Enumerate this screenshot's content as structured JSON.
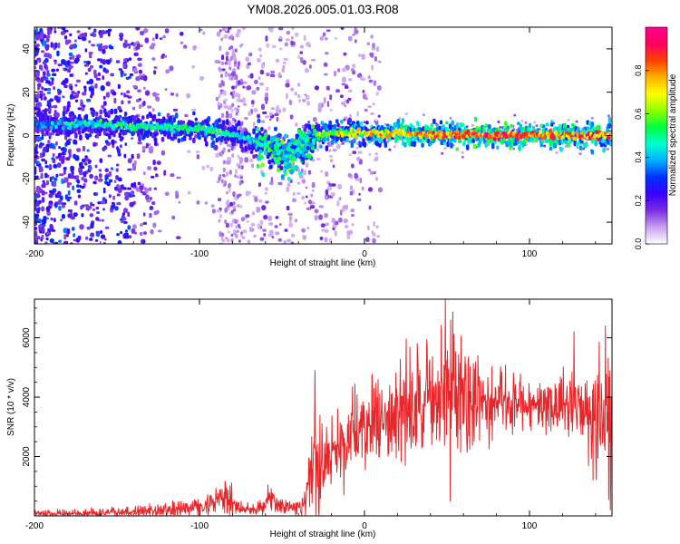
{
  "title": "YM08.2026.005.01.03.R08",
  "chart_data": [
    {
      "type": "heatmap",
      "name": "spectrogram",
      "xlabel": "Height of straight line (km)",
      "ylabel": "Frequency (Hz)",
      "xlim": [
        -200,
        150
      ],
      "ylim": [
        -50,
        50
      ],
      "xticks": [
        "-200",
        "-100",
        "0",
        "100"
      ],
      "yticks": [
        "-40",
        "-20",
        "0",
        "20",
        "40"
      ],
      "xtick_values": [
        -200,
        -100,
        0,
        100
      ],
      "ytick_values": [
        -40,
        -20,
        0,
        20,
        40
      ],
      "ridge": {
        "x": [
          -200,
          -180,
          -160,
          -140,
          -120,
          -100,
          -90,
          -80,
          -70,
          -60,
          -50,
          -45,
          -40,
          -35,
          -30,
          -20,
          0,
          20,
          50,
          80,
          100,
          120,
          150
        ],
        "amp": [
          0.35,
          0.42,
          0.45,
          0.5,
          0.5,
          0.5,
          0.5,
          0.45,
          0.45,
          0.35,
          0.3,
          0.25,
          0.35,
          0.45,
          0.6,
          0.6,
          0.7,
          0.75,
          0.8,
          0.88,
          0.85,
          0.8,
          0.8
        ],
        "freq": [
          5,
          5,
          5,
          4,
          4,
          3,
          2,
          1,
          -2,
          -4,
          -6,
          -8,
          -5,
          -2,
          0,
          1,
          1,
          1,
          0.5,
          0,
          0,
          0,
          0
        ]
      }
    },
    {
      "type": "colorbar",
      "name": "colorbar",
      "label": "Normalized spectral amplitude",
      "range": [
        0,
        1
      ],
      "ticks": [
        "0.0",
        "0.2",
        "0.4",
        "0.6",
        "0.8"
      ],
      "tick_values": [
        0.0,
        0.2,
        0.4,
        0.6,
        0.8
      ],
      "colormap": [
        "#ffffff",
        "#c8a0f0",
        "#7a2ee0",
        "#3a00ff",
        "#0030ff",
        "#00b0ff",
        "#00ffd0",
        "#00ff40",
        "#90ff00",
        "#ffff00",
        "#ffb000",
        "#ff4000",
        "#ff0060",
        "#ff0090"
      ]
    },
    {
      "type": "line",
      "name": "snr",
      "xlabel": "Height of straight line (km)",
      "ylabel": "SNR (10 * v/v)",
      "xlim": [
        -200,
        150
      ],
      "ylim": [
        0,
        7300
      ],
      "xticks": [
        "-200",
        "-100",
        "0",
        "100"
      ],
      "yticks": [
        "2000",
        "4000",
        "6000"
      ],
      "xtick_values": [
        -200,
        -100,
        0,
        100
      ],
      "ytick_values": [
        2000,
        4000,
        6000
      ],
      "color": "#e8262a",
      "envelope": {
        "x": [
          -200,
          -180,
          -160,
          -140,
          -120,
          -100,
          -90,
          -85,
          -80,
          -75,
          -70,
          -62,
          -57,
          -52,
          -45,
          -38,
          -34,
          -30,
          -25,
          -20,
          -15,
          -10,
          -5,
          0,
          10,
          20,
          30,
          40,
          50,
          60,
          70,
          80,
          90,
          100,
          110,
          120,
          130,
          140,
          150
        ],
        "mean": [
          80,
          80,
          100,
          130,
          200,
          300,
          450,
          600,
          500,
          250,
          200,
          300,
          650,
          300,
          250,
          350,
          900,
          1600,
          1900,
          2300,
          2100,
          2600,
          2900,
          3000,
          3200,
          3600,
          4000,
          4300,
          4400,
          4100,
          4000,
          3800,
          3800,
          3750,
          3800,
          3800,
          3600,
          3400,
          3000
        ],
        "amp": [
          120,
          120,
          140,
          160,
          220,
          300,
          350,
          500,
          450,
          200,
          180,
          280,
          450,
          250,
          200,
          350,
          1200,
          2000,
          1500,
          1500,
          1200,
          1200,
          1200,
          1200,
          1200,
          1400,
          1600,
          1700,
          1900,
          1700,
          1300,
          900,
          800,
          700,
          800,
          900,
          1300,
          1700,
          2300
        ]
      },
      "peaks": [
        {
          "x": -30,
          "y": 4900
        },
        {
          "x": 49,
          "y": 7300
        },
        {
          "x": 52,
          "y": 500
        },
        {
          "x": 127,
          "y": 6200
        },
        {
          "x": 146,
          "y": 6400
        },
        {
          "x": 149,
          "y": 200
        }
      ]
    }
  ]
}
